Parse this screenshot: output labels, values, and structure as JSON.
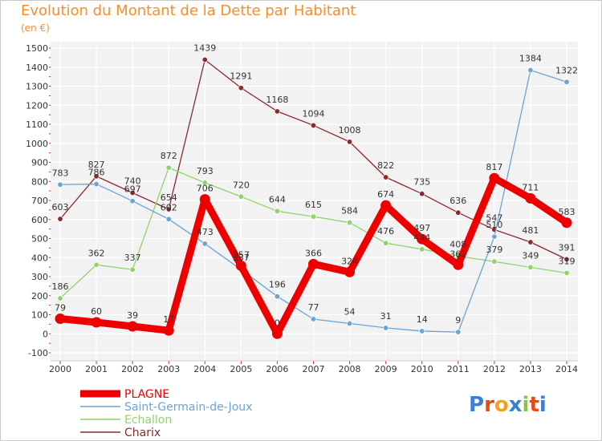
{
  "page": {
    "title": "Evolution du Montant de la Dette par Habitant",
    "unit": "(en €)",
    "logo": [
      "P",
      "r",
      "o",
      "x",
      "i",
      "t",
      "i"
    ],
    "logo_colors": [
      "#3a7fd5",
      "#e64a19",
      "#f4a020",
      "#3a7fd5",
      "#8bc34a",
      "#e64a19",
      "#3a7fd5"
    ]
  },
  "chart_data": {
    "type": "line",
    "title": "Evolution du Montant de la Dette par Habitant",
    "subtitle": "(en €)",
    "categories": [
      "2000",
      "2001",
      "2002",
      "2003",
      "2004",
      "2005",
      "2006",
      "2007",
      "2008",
      "2009",
      "2010",
      "2011",
      "2012",
      "2013",
      "2014"
    ],
    "ylim": [
      -100,
      1500
    ],
    "yticks": [
      -100,
      0,
      100,
      200,
      300,
      400,
      500,
      600,
      700,
      800,
      900,
      1000,
      1100,
      1200,
      1300,
      1400,
      1500
    ],
    "grid": true,
    "legend_position": "bottom-left",
    "series": [
      {
        "name": "PLAGNE",
        "color": "#ee0000",
        "values": [
          79,
          60,
          39,
          17,
          706,
          357,
          0,
          366,
          324,
          674,
          497,
          362,
          817,
          711,
          583
        ],
        "labels": [
          "79",
          "60",
          "39",
          "17",
          "706",
          "357",
          "0",
          "366",
          "324",
          "674",
          "497",
          "362",
          "817",
          "711",
          "583"
        ]
      },
      {
        "name": "Saint-Germain-de-Joux",
        "color": "#6aa4d8",
        "values": [
          783,
          786,
          697,
          602,
          473,
          337,
          196,
          77,
          54,
          31,
          14,
          9,
          510,
          1384,
          1322
        ],
        "labels": [
          "783",
          "786",
          "697",
          "602",
          "473",
          "337",
          "196",
          "77",
          "54",
          "31",
          "14",
          "9",
          "510",
          "1384",
          "1322"
        ]
      },
      {
        "name": "Echallon",
        "color": "#8fd46a",
        "values": [
          186,
          362,
          337,
          872,
          793,
          720,
          644,
          615,
          584,
          476,
          444,
          408,
          379,
          349,
          319
        ],
        "labels": [
          "186",
          "362",
          "337",
          "872",
          "793",
          "720",
          "644",
          "615",
          "584",
          "476",
          "444",
          "408",
          "379",
          "349",
          "319"
        ]
      },
      {
        "name": "Charix",
        "color": "#8a2a2a",
        "values": [
          603,
          827,
          740,
          654,
          1439,
          1291,
          1168,
          1094,
          1008,
          822,
          735,
          636,
          547,
          481,
          391
        ],
        "labels": [
          "603",
          "827",
          "740",
          "654",
          "1439",
          "1291",
          "1168",
          "1094",
          "1008",
          "822",
          "735",
          "636",
          "547",
          "481",
          "391"
        ]
      }
    ]
  }
}
